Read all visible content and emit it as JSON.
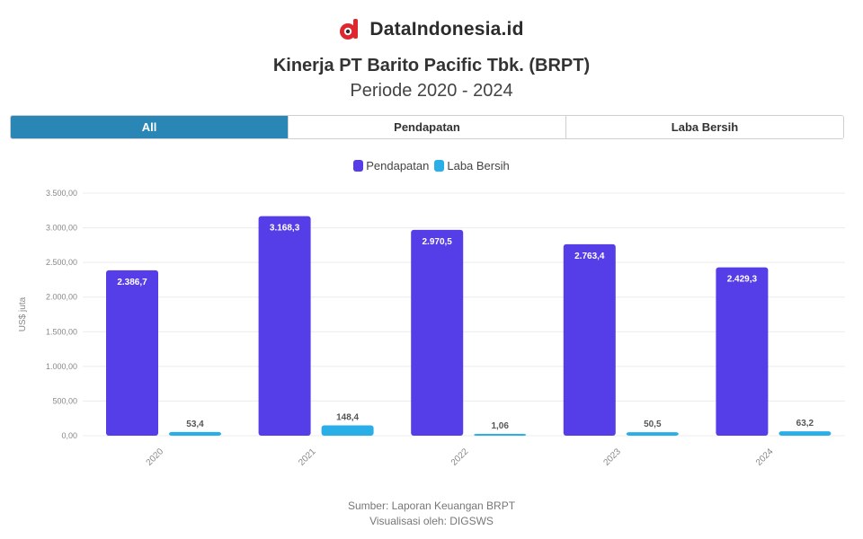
{
  "brand": {
    "name": "DataIndonesia.id",
    "logo_icon": "dataindonesia-logo-icon",
    "logo_color": "#e0262e"
  },
  "tabs": [
    {
      "label": "All",
      "active": true
    },
    {
      "label": "Pendapatan",
      "active": false
    },
    {
      "label": "Laba Bersih",
      "active": false
    }
  ],
  "colors": {
    "tab_active": "#2a87b5",
    "pendapatan": "#553de8",
    "laba_bersih": "#2aaee8"
  },
  "chart_data": {
    "type": "bar",
    "title": "Kinerja PT Barito Pacific Tbk. (BRPT)",
    "subtitle": "Periode 2020 - 2024",
    "ylabel": "US$ juta",
    "categories": [
      "2020",
      "2021",
      "2022",
      "2023",
      "2024"
    ],
    "series": [
      {
        "name": "Pendapatan",
        "values": [
          2386.7,
          3168.3,
          2970.5,
          2763.4,
          2429.3
        ],
        "labels": [
          "2.386,7",
          "3.168,3",
          "2.970,5",
          "2.763,4",
          "2.429,3"
        ]
      },
      {
        "name": "Laba Bersih",
        "values": [
          53.4,
          148.4,
          1.06,
          50.5,
          63.2
        ],
        "labels": [
          "53,4",
          "148,4",
          "1,06",
          "50,5",
          "63,2"
        ]
      }
    ],
    "ylim": [
      0,
      3500
    ],
    "yticks": [
      0,
      500,
      1000,
      1500,
      2000,
      2500,
      3000,
      3500
    ],
    "ytick_labels": [
      "0,00",
      "500,00",
      "1.000,00",
      "1.500,00",
      "2.000,00",
      "2.500,00",
      "3.000,00",
      "3.500,00"
    ],
    "grid": true,
    "legend_position": "top-center"
  },
  "footer": {
    "source": "Sumber: Laporan Keuangan BRPT",
    "credit": "Visualisasi oleh: DIGSWS"
  }
}
